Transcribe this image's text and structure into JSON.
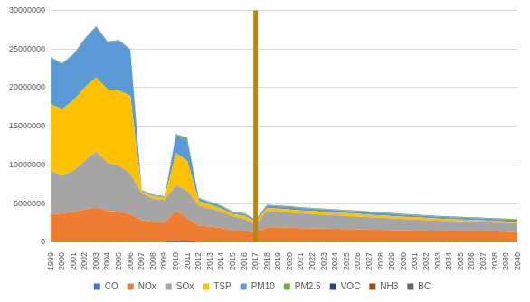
{
  "chart_data": {
    "type": "area",
    "stacked": true,
    "legend": "bottom",
    "grid": true,
    "categories": [
      "1999",
      "2000",
      "2001",
      "2002",
      "2003",
      "2004",
      "2005",
      "2006",
      "2007",
      "2008",
      "2009",
      "2010",
      "2011",
      "2012",
      "2013",
      "2014",
      "2015",
      "2016",
      "2017",
      "2018",
      "2019",
      "2020",
      "2021",
      "2022",
      "2023",
      "2024",
      "2025",
      "2026",
      "2027",
      "2028",
      "2029",
      "2030",
      "2031",
      "2032",
      "2033",
      "2034",
      "2035",
      "2036",
      "2037",
      "2038",
      "2039",
      "2040"
    ],
    "ylim": [
      0,
      30000000
    ],
    "yticks": [
      0,
      5000000,
      10000000,
      15000000,
      20000000,
      25000000,
      30000000
    ],
    "annotations": [
      {
        "type": "vertical_line",
        "x": "2017",
        "color": "#b8860b"
      }
    ],
    "series": [
      {
        "name": "CO",
        "color": "#4472c4",
        "values": [
          50000,
          50000,
          50000,
          50000,
          50000,
          50000,
          50000,
          50000,
          50000,
          50000,
          50000,
          200000,
          150000,
          50000,
          50000,
          50000,
          50000,
          50000,
          50000,
          50000,
          50000,
          50000,
          50000,
          50000,
          50000,
          50000,
          50000,
          50000,
          50000,
          50000,
          50000,
          50000,
          50000,
          50000,
          50000,
          50000,
          50000,
          50000,
          50000,
          50000,
          50000,
          50000
        ]
      },
      {
        "name": "NOx",
        "color": "#ed7d31",
        "values": [
          3600000,
          3700000,
          3900000,
          4200000,
          4500000,
          4000000,
          3900000,
          3600000,
          2800000,
          2600000,
          2500000,
          3900000,
          3000000,
          2100000,
          2000000,
          1800000,
          1500000,
          1400000,
          1200000,
          1900000,
          1900000,
          1850000,
          1800000,
          1750000,
          1720000,
          1700000,
          1670000,
          1640000,
          1600000,
          1570000,
          1540000,
          1520000,
          1500000,
          1470000,
          1450000,
          1430000,
          1410000,
          1390000,
          1370000,
          1350000,
          1330000,
          1310000
        ]
      },
      {
        "name": "SOx",
        "color": "#a5a5a5",
        "values": [
          5600000,
          4900000,
          5300000,
          6300000,
          7200000,
          6200000,
          6000000,
          5200000,
          3500000,
          3000000,
          2900000,
          3300000,
          3500000,
          2600000,
          2300000,
          2100000,
          1800000,
          1600000,
          1100000,
          2100000,
          2000000,
          1950000,
          1900000,
          1850000,
          1800000,
          1750000,
          1700000,
          1650000,
          1600000,
          1550000,
          1500000,
          1450000,
          1400000,
          1350000,
          1300000,
          1270000,
          1240000,
          1210000,
          1180000,
          1150000,
          1120000,
          1100000
        ]
      },
      {
        "name": "TSP",
        "color": "#ffc000",
        "values": [
          8600000,
          8600000,
          9100000,
          9500000,
          9600000,
          9500000,
          9700000,
          10100000,
          200000,
          300000,
          300000,
          4100000,
          3900000,
          600000,
          500000,
          400000,
          300000,
          400000,
          300000,
          400000,
          400000,
          400000,
          380000,
          370000,
          360000,
          350000,
          340000,
          330000,
          320000,
          310000,
          300000,
          290000,
          280000,
          270000,
          260000,
          250000,
          240000,
          230000,
          220000,
          210000,
          200000,
          200000
        ]
      },
      {
        "name": "PM10",
        "color": "#5b9bd5",
        "values": [
          6000000,
          5800000,
          5900000,
          6200000,
          6500000,
          6100000,
          6400000,
          5900000,
          100000,
          100000,
          100000,
          2300000,
          2600000,
          300000,
          300000,
          300000,
          200000,
          200000,
          200000,
          300000,
          300000,
          300000,
          300000,
          300000,
          300000,
          300000,
          300000,
          300000,
          300000,
          300000,
          300000,
          250000,
          250000,
          250000,
          250000,
          250000,
          250000,
          250000,
          250000,
          250000,
          250000,
          250000
        ]
      },
      {
        "name": "PM2.5",
        "color": "#70ad47",
        "values": [
          50000,
          50000,
          50000,
          50000,
          50000,
          50000,
          50000,
          50000,
          50000,
          50000,
          50000,
          150000,
          300000,
          50000,
          50000,
          50000,
          50000,
          50000,
          50000,
          50000,
          50000,
          50000,
          50000,
          50000,
          50000,
          50000,
          50000,
          50000,
          50000,
          50000,
          50000,
          50000,
          50000,
          50000,
          50000,
          50000,
          50000,
          50000,
          50000,
          50000,
          50000,
          50000
        ]
      },
      {
        "name": "VOC",
        "color": "#264478",
        "values": [
          20000,
          20000,
          20000,
          20000,
          20000,
          20000,
          20000,
          20000,
          20000,
          20000,
          20000,
          20000,
          20000,
          20000,
          20000,
          20000,
          20000,
          20000,
          20000,
          20000,
          20000,
          20000,
          20000,
          20000,
          20000,
          20000,
          20000,
          20000,
          20000,
          20000,
          20000,
          20000,
          20000,
          20000,
          20000,
          20000,
          20000,
          20000,
          20000,
          20000,
          20000,
          20000
        ]
      },
      {
        "name": "NH3",
        "color": "#9e480e",
        "values": [
          20000,
          20000,
          20000,
          20000,
          20000,
          20000,
          20000,
          20000,
          20000,
          20000,
          20000,
          20000,
          20000,
          20000,
          20000,
          20000,
          20000,
          20000,
          20000,
          20000,
          20000,
          20000,
          20000,
          20000,
          20000,
          20000,
          20000,
          20000,
          20000,
          20000,
          20000,
          20000,
          20000,
          20000,
          20000,
          20000,
          20000,
          20000,
          20000,
          20000,
          20000,
          20000
        ]
      },
      {
        "name": "BC",
        "color": "#636363",
        "values": [
          20000,
          20000,
          20000,
          20000,
          20000,
          20000,
          20000,
          20000,
          20000,
          20000,
          20000,
          20000,
          20000,
          20000,
          20000,
          20000,
          20000,
          20000,
          20000,
          20000,
          20000,
          20000,
          20000,
          20000,
          20000,
          20000,
          20000,
          20000,
          20000,
          20000,
          20000,
          20000,
          20000,
          20000,
          20000,
          20000,
          20000,
          20000,
          20000,
          20000,
          20000,
          20000
        ]
      }
    ]
  }
}
